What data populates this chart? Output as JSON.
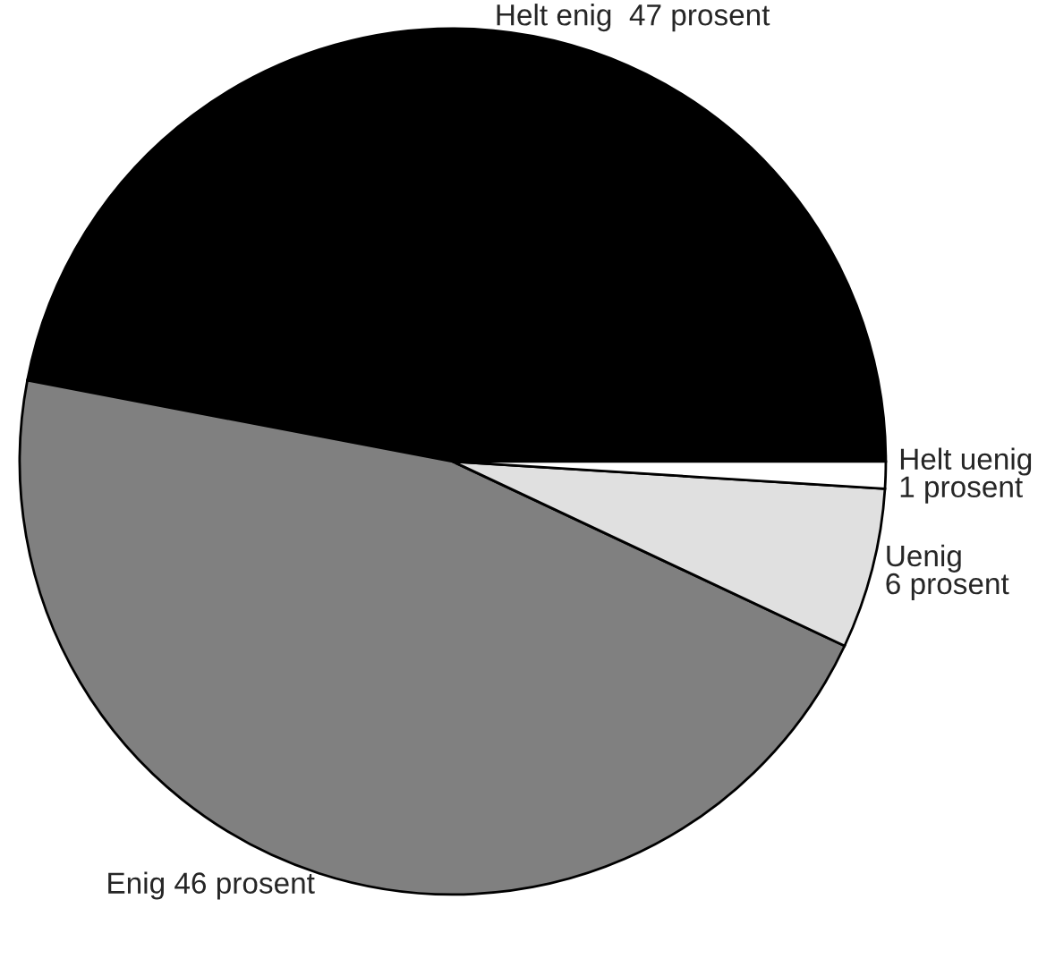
{
  "chart_data": {
    "type": "pie",
    "categories": [
      "Helt enig  47 prosent",
      "Enig 46 prosent",
      "Uenig\n6 prosent",
      "Helt uenig\n1 prosent"
    ],
    "values": [
      47,
      46,
      6,
      1
    ],
    "colors": [
      "#000000",
      "#808080",
      "#e0e0e0",
      "#ffffff"
    ]
  }
}
